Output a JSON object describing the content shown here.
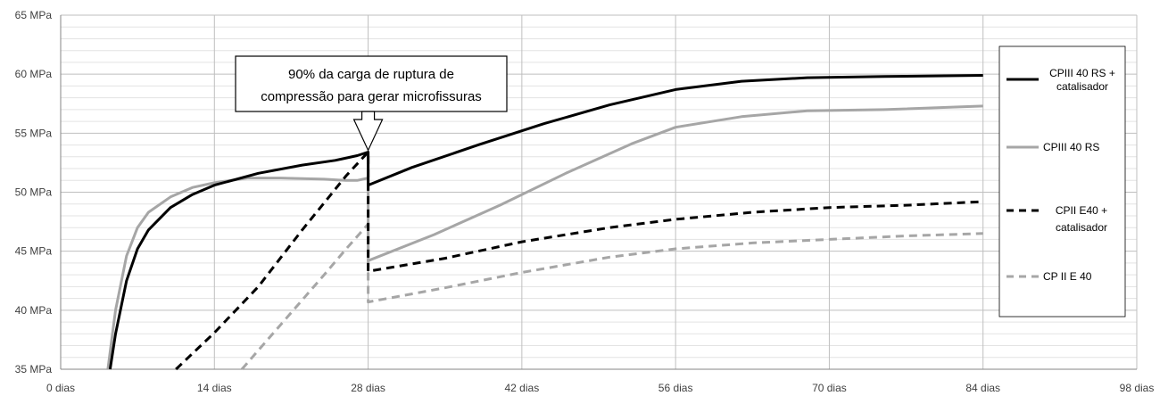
{
  "chart_data": {
    "type": "line",
    "title": "",
    "xlabel": "",
    "ylabel": "",
    "xlim": [
      0,
      98
    ],
    "ylim": [
      35,
      65
    ],
    "x_ticks": [
      0,
      14,
      28,
      42,
      56,
      70,
      84,
      98
    ],
    "x_tick_labels": [
      "0 dias",
      "14 dias",
      "28 dias",
      "42 dias",
      "56 dias",
      "70 dias",
      "84 dias",
      "98 dias"
    ],
    "y_ticks": [
      35,
      40,
      45,
      50,
      55,
      60,
      65
    ],
    "y_tick_labels": [
      "35 MPa",
      "40 MPa",
      "45 MPa",
      "50 MPa",
      "55 MPa",
      "60 MPa",
      "65 MPa"
    ],
    "grid": "major vertical and horizontal, minor horizontal every 1 MPa",
    "legend_position": "right",
    "annotation": {
      "text_lines": [
        "90% da carga de ruptura de",
        "compressão para gerar microfissuras"
      ],
      "points_to": [
        28,
        53.4
      ]
    },
    "series": [
      {
        "name": "CPIII 40 RS + catalisador",
        "legend_lines": [
          "CPIII 40 RS +",
          "catalisador"
        ],
        "color": "#000000",
        "dash": "solid",
        "points": [
          [
            4.5,
            35
          ],
          [
            5,
            38
          ],
          [
            6,
            42.5
          ],
          [
            7,
            45.2
          ],
          [
            8,
            46.8
          ],
          [
            10,
            48.7
          ],
          [
            12,
            49.8
          ],
          [
            14,
            50.6
          ],
          [
            18,
            51.6
          ],
          [
            22,
            52.3
          ],
          [
            25,
            52.7
          ],
          [
            27,
            53.1
          ],
          [
            28,
            53.4
          ],
          [
            28,
            50.6
          ],
          [
            32,
            52.1
          ],
          [
            38,
            54.0
          ],
          [
            44,
            55.8
          ],
          [
            50,
            57.4
          ],
          [
            56,
            58.7
          ],
          [
            62,
            59.4
          ],
          [
            68,
            59.7
          ],
          [
            75,
            59.8
          ],
          [
            84,
            59.9
          ]
        ]
      },
      {
        "name": "CPIII 40 RS",
        "legend_lines": [
          "CPIII 40 RS"
        ],
        "color": "#a6a6a6",
        "dash": "solid",
        "points": [
          [
            4.3,
            35
          ],
          [
            5,
            40
          ],
          [
            6,
            44.6
          ],
          [
            7,
            47
          ],
          [
            8,
            48.3
          ],
          [
            10,
            49.6
          ],
          [
            12,
            50.4
          ],
          [
            14,
            50.8
          ],
          [
            17,
            51.2
          ],
          [
            20,
            51.2
          ],
          [
            24,
            51.1
          ],
          [
            26,
            51
          ],
          [
            27,
            51
          ],
          [
            28,
            51.2
          ],
          [
            28,
            44.2
          ],
          [
            34,
            46.4
          ],
          [
            40,
            48.9
          ],
          [
            46,
            51.6
          ],
          [
            52,
            54.1
          ],
          [
            56,
            55.5
          ],
          [
            62,
            56.4
          ],
          [
            68,
            56.9
          ],
          [
            75,
            57.0
          ],
          [
            84,
            57.3
          ]
        ]
      },
      {
        "name": "CPII E40 + catalisador",
        "legend_lines": [
          "CPII E40  +",
          "catalisador"
        ],
        "color": "#000000",
        "dash": "dashed",
        "points": [
          [
            10.5,
            35
          ],
          [
            14,
            38.1
          ],
          [
            18,
            42
          ],
          [
            22,
            46.8
          ],
          [
            26,
            51.4
          ],
          [
            28,
            53.4
          ],
          [
            28,
            43.3
          ],
          [
            35,
            44.4
          ],
          [
            42,
            45.8
          ],
          [
            50,
            47.0
          ],
          [
            56,
            47.7
          ],
          [
            63,
            48.3
          ],
          [
            70,
            48.7
          ],
          [
            77,
            48.9
          ],
          [
            84,
            49.2
          ]
        ]
      },
      {
        "name": "CP II E 40",
        "legend_lines": [
          "CP II E 40"
        ],
        "color": "#a6a6a6",
        "dash": "dashed",
        "points": [
          [
            16.5,
            35
          ],
          [
            18,
            36.6
          ],
          [
            21,
            39.8
          ],
          [
            24,
            43
          ],
          [
            26,
            45.2
          ],
          [
            28,
            47.3
          ],
          [
            28,
            40.7
          ],
          [
            35,
            41.9
          ],
          [
            42,
            43.2
          ],
          [
            50,
            44.5
          ],
          [
            56,
            45.2
          ],
          [
            63,
            45.7
          ],
          [
            70,
            46.0
          ],
          [
            77,
            46.3
          ],
          [
            84,
            46.5
          ]
        ]
      }
    ]
  }
}
